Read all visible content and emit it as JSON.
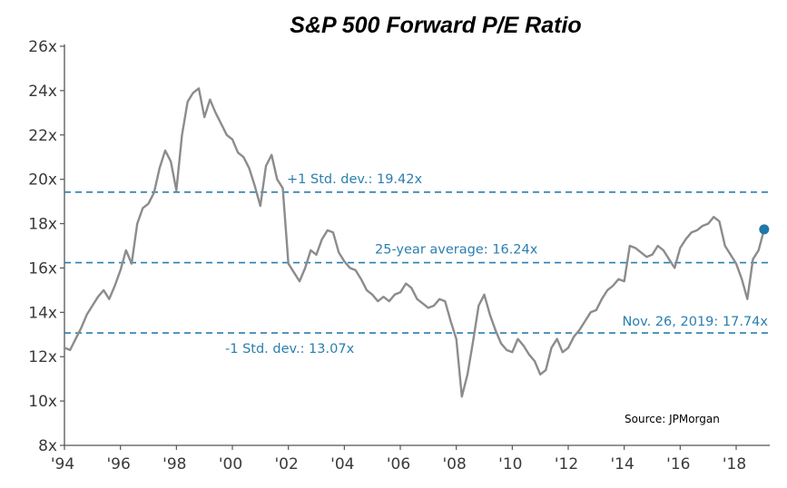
{
  "chart_data": {
    "type": "line",
    "title": "S&P 500 Forward P/E Ratio",
    "xlabel": "",
    "ylabel": "",
    "ylim": [
      8,
      26
    ],
    "xlim": [
      1994,
      2019.2
    ],
    "grid": false,
    "y_ticks": [
      8,
      10,
      12,
      14,
      16,
      18,
      20,
      22,
      24,
      26
    ],
    "y_tick_labels": [
      "8x",
      "10x",
      "12x",
      "14x",
      "16x",
      "18x",
      "20x",
      "22x",
      "24x",
      "26x"
    ],
    "x_ticks": [
      1994,
      1996,
      1998,
      2000,
      2002,
      2004,
      2006,
      2008,
      2010,
      2012,
      2014,
      2016,
      2018
    ],
    "x_tick_labels": [
      "'94",
      "'96",
      "'98",
      "'00",
      "'02",
      "'04",
      "'06",
      "'08",
      "'10",
      "'12",
      "'14",
      "'16",
      "'18"
    ],
    "reference_lines": [
      {
        "value": 19.42,
        "label": "+1 Std. dev.: 19.42x"
      },
      {
        "value": 16.24,
        "label": "25-year average: 16.24x"
      },
      {
        "value": 13.07,
        "label": "-1 Std. dev.: 13.07x"
      }
    ],
    "highlight_point": {
      "x": 2019.0,
      "y": 17.74,
      "label": "Nov. 26, 2019: 17.74x"
    },
    "source_note": "Source: JPMorgan",
    "colors": {
      "line": "#8c8c8c",
      "reference": "#2a7fae",
      "highlight": "#1f78a8",
      "axis": "#555555"
    },
    "series": [
      {
        "x": [
          1994.0,
          1994.2,
          1994.4,
          1994.6,
          1994.8,
          1995.0,
          1995.2,
          1995.4,
          1995.6,
          1995.8,
          1996.0,
          1996.2,
          1996.4,
          1996.6,
          1996.8,
          1997.0,
          1997.2,
          1997.4,
          1997.6,
          1997.8,
          1998.0,
          1998.2,
          1998.4,
          1998.6,
          1998.8,
          1999.0,
          1999.2,
          1999.4,
          1999.6,
          1999.8,
          2000.0,
          2000.2,
          2000.4,
          2000.6,
          2000.8,
          2001.0,
          2001.2,
          2001.4,
          2001.6,
          2001.8,
          2002.0,
          2002.2,
          2002.4,
          2002.6,
          2002.8,
          2003.0,
          2003.2,
          2003.4,
          2003.6,
          2003.8,
          2004.0,
          2004.2,
          2004.4,
          2004.6,
          2004.8,
          2005.0,
          2005.2,
          2005.4,
          2005.6,
          2005.8,
          2006.0,
          2006.2,
          2006.4,
          2006.6,
          2006.8,
          2007.0,
          2007.2,
          2007.4,
          2007.6,
          2007.8,
          2008.0,
          2008.2,
          2008.4,
          2008.6,
          2008.8,
          2009.0,
          2009.2,
          2009.4,
          2009.6,
          2009.8,
          2010.0,
          2010.2,
          2010.4,
          2010.6,
          2010.8,
          2011.0,
          2011.2,
          2011.4,
          2011.6,
          2011.8,
          2012.0,
          2012.2,
          2012.4,
          2012.6,
          2012.8,
          2013.0,
          2013.2,
          2013.4,
          2013.6,
          2013.8,
          2014.0,
          2014.2,
          2014.4,
          2014.6,
          2014.8,
          2015.0,
          2015.2,
          2015.4,
          2015.6,
          2015.8,
          2016.0,
          2016.2,
          2016.4,
          2016.6,
          2016.8,
          2017.0,
          2017.2,
          2017.4,
          2017.6,
          2017.8,
          2018.0,
          2018.2,
          2018.4,
          2018.6,
          2018.8,
          2019.0
        ],
        "values": [
          12.4,
          12.3,
          12.8,
          13.3,
          13.9,
          14.3,
          14.7,
          15.0,
          14.6,
          15.2,
          15.9,
          16.8,
          16.2,
          18.0,
          18.7,
          18.9,
          19.4,
          20.5,
          21.3,
          20.8,
          19.5,
          22.0,
          23.5,
          23.9,
          24.1,
          22.8,
          23.6,
          23.0,
          22.5,
          22.0,
          21.8,
          21.2,
          21.0,
          20.5,
          19.7,
          18.8,
          20.6,
          21.1,
          20.0,
          19.6,
          16.2,
          15.8,
          15.4,
          16.0,
          16.8,
          16.6,
          17.3,
          17.7,
          17.6,
          16.7,
          16.3,
          16.0,
          15.9,
          15.5,
          15.0,
          14.8,
          14.5,
          14.7,
          14.5,
          14.8,
          14.9,
          15.3,
          15.1,
          14.6,
          14.4,
          14.2,
          14.3,
          14.6,
          14.5,
          13.6,
          12.8,
          10.2,
          11.2,
          12.7,
          14.3,
          14.8,
          13.9,
          13.2,
          12.6,
          12.3,
          12.2,
          12.8,
          12.5,
          12.1,
          11.8,
          11.2,
          11.4,
          12.4,
          12.8,
          12.2,
          12.4,
          12.9,
          13.2,
          13.6,
          14.0,
          14.1,
          14.6,
          15.0,
          15.2,
          15.5,
          15.4,
          17.0,
          16.9,
          16.7,
          16.5,
          16.6,
          17.0,
          16.8,
          16.4,
          16.0,
          16.9,
          17.3,
          17.6,
          17.7,
          17.9,
          18.0,
          18.3,
          18.1,
          17.0,
          16.6,
          16.2,
          15.5,
          14.6,
          16.4,
          16.8,
          17.74
        ]
      }
    ]
  }
}
